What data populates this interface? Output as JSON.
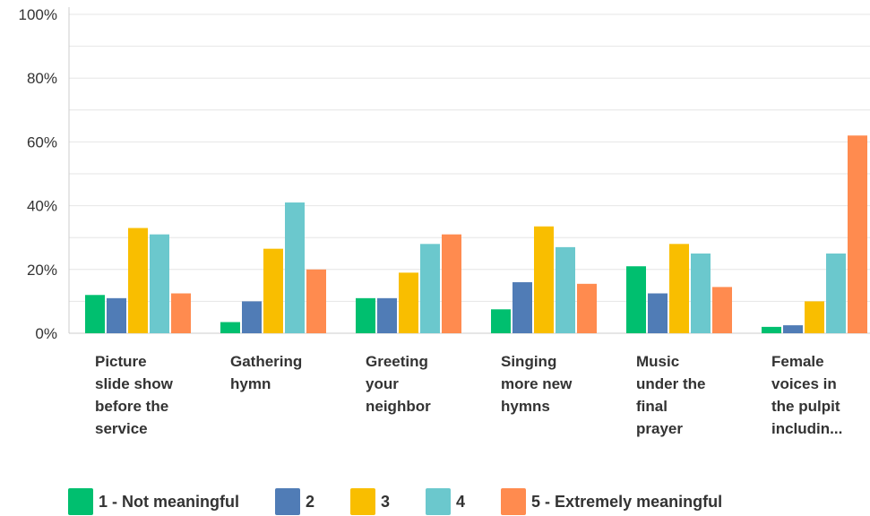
{
  "chart_data": {
    "type": "bar",
    "categories": [
      "Picture slide show before the service",
      "Gathering hymn",
      "Greeting your neighbor",
      "Singing more new hymns",
      "Music under the final prayer",
      "Female voices in the pulpit includin..."
    ],
    "category_lines": [
      [
        "Picture",
        "slide show",
        "before the",
        "service"
      ],
      [
        "Gathering",
        "hymn"
      ],
      [
        "Greeting",
        "your",
        "neighbor"
      ],
      [
        "Singing",
        "more new",
        "hymns"
      ],
      [
        "Music",
        "under the",
        "final",
        "prayer"
      ],
      [
        "Female",
        "voices in",
        "the pulpit",
        "includin..."
      ]
    ],
    "series": [
      {
        "name": "1 - Not meaningful",
        "color": "#00bf6f",
        "values": [
          12,
          3.5,
          11,
          7.5,
          21,
          2
        ]
      },
      {
        "name": "2",
        "color": "#507cb6",
        "values": [
          11,
          10,
          11,
          16,
          12.5,
          2.5
        ]
      },
      {
        "name": "3",
        "color": "#f9be00",
        "values": [
          33,
          26.5,
          19,
          33.5,
          28,
          10
        ]
      },
      {
        "name": "4",
        "color": "#6bc8cd",
        "values": [
          31,
          41,
          28,
          27,
          25,
          25
        ]
      },
      {
        "name": "5 - Extremely meaningful",
        "color": "#ff8b4f",
        "values": [
          12.5,
          20,
          31,
          15.5,
          14.5,
          62
        ]
      }
    ],
    "yticks": [
      "0%",
      "20%",
      "40%",
      "60%",
      "80%",
      "100%"
    ],
    "ylim": [
      0,
      100
    ],
    "grid": true,
    "legend_position": "bottom",
    "title": "",
    "xlabel": "",
    "ylabel": ""
  }
}
